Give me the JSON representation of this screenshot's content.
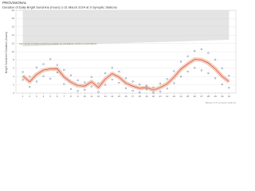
{
  "chart_data": {
    "type": "scatter",
    "header": "PROVISIONAL",
    "title": "Duration of Daily Bright Sunshine (hours) 1-31 March 2024 at 9 Synoptic Stations",
    "y_label": "Bright Sunshine Duration (hours)",
    "annotation": "Max 11.3h of bright sunshine possible on 1st March, 12.9h on 31st March",
    "footer": "Based on 9 synoptic stations",
    "xlim": [
      0,
      32
    ],
    "xticks": [
      1,
      2,
      3,
      4,
      5,
      6,
      7,
      8,
      9,
      10,
      11,
      12,
      13,
      14,
      15,
      16,
      17,
      18,
      19,
      20,
      21,
      22,
      23,
      24,
      25,
      26,
      27,
      28,
      29,
      30,
      31
    ],
    "ylim": [
      0,
      20
    ],
    "yticks": [
      0,
      2,
      4,
      6,
      8,
      10,
      12,
      14,
      16,
      18,
      20
    ],
    "grid": true,
    "days": [
      1,
      2,
      3,
      4,
      5,
      6,
      7,
      8,
      9,
      10,
      11,
      12,
      13,
      14,
      15,
      16,
      17,
      18,
      19,
      20,
      21,
      22,
      23,
      24,
      25,
      26,
      27,
      28,
      29,
      30,
      31
    ],
    "max_possible": {
      "color": "#e4e4e4",
      "values": [
        11.3,
        11.35,
        11.4,
        11.46,
        11.51,
        11.56,
        11.62,
        11.67,
        11.72,
        11.77,
        11.83,
        11.88,
        11.93,
        11.99,
        12.04,
        12.09,
        12.14,
        12.2,
        12.25,
        12.3,
        12.36,
        12.41,
        12.46,
        12.51,
        12.57,
        12.62,
        12.67,
        12.73,
        12.78,
        12.83,
        12.89
      ]
    },
    "mean": {
      "color": "#c0392b",
      "band_color": "#f2b8a0",
      "values": [
        4.15,
        2.75,
        4.5,
        5.55,
        5.85,
        5.9,
        3.9,
        2.65,
        1.8,
        1.7,
        2.75,
        1.35,
        3.4,
        4.7,
        3.85,
        2.4,
        1.7,
        1.15,
        1.35,
        0.75,
        1.35,
        2.25,
        3.85,
        5.8,
        7.05,
        8.15,
        8.05,
        7.25,
        5.85,
        4.05,
        2.75
      ]
    },
    "points": {
      "color": "#3b5b8c",
      "x": [
        1,
        1,
        2,
        2,
        3,
        3,
        4,
        4,
        5,
        5,
        6,
        6,
        7,
        7,
        8,
        8,
        9,
        9,
        10,
        10,
        11,
        11,
        12,
        12,
        13,
        13,
        14,
        14,
        15,
        15,
        16,
        16,
        17,
        17,
        18,
        18,
        19,
        19,
        20,
        20,
        21,
        21,
        22,
        22,
        23,
        23,
        24,
        24,
        25,
        25,
        26,
        26,
        27,
        27,
        28,
        28,
        29,
        29,
        30,
        30,
        31,
        31
      ],
      "y": [
        3.2,
        5.1,
        1.5,
        4.0,
        2.8,
        6.2,
        4.1,
        7.0,
        3.5,
        8.2,
        5.0,
        6.8,
        2.2,
        5.6,
        1.0,
        4.3,
        0.5,
        3.1,
        0.8,
        2.6,
        1.6,
        3.9,
        0.3,
        2.4,
        2.0,
        4.8,
        3.3,
        6.1,
        2.5,
        5.2,
        1.2,
        3.6,
        0.6,
        2.8,
        0.2,
        2.1,
        0.9,
        1.8,
        0.1,
        1.4,
        0.4,
        2.3,
        1.1,
        3.4,
        2.4,
        5.3,
        4.0,
        7.6,
        5.2,
        8.9,
        6.1,
        10.2,
        5.5,
        10.6,
        4.8,
        9.7,
        3.6,
        8.1,
        2.1,
        6.0,
        1.3,
        4.2
      ]
    }
  }
}
